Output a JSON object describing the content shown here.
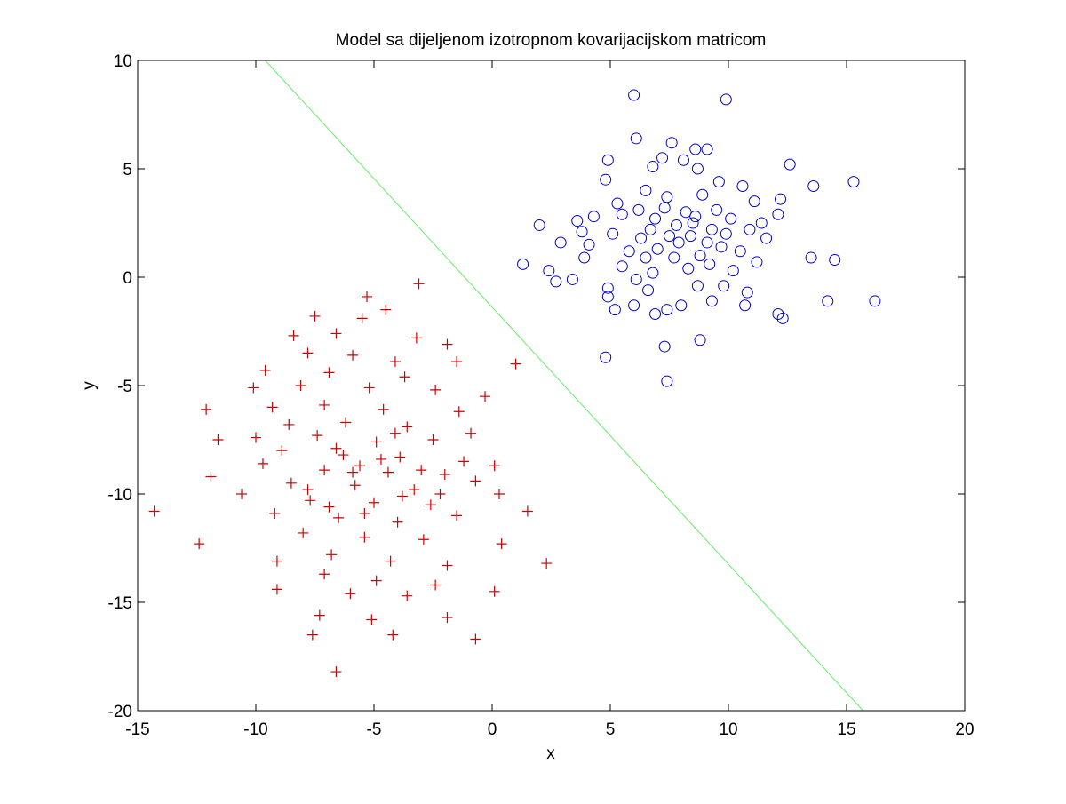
{
  "chart_data": {
    "type": "scatter",
    "title": "Model sa dijeljenom izotropnom kovarijacijskom matricom",
    "xlabel": "x",
    "ylabel": "y",
    "xlim": [
      -15,
      20
    ],
    "ylim": [
      -20,
      10
    ],
    "xticks": [
      -15,
      -10,
      -5,
      0,
      5,
      10,
      15,
      20
    ],
    "yticks": [
      -20,
      -15,
      -10,
      -5,
      0,
      5,
      10
    ],
    "grid": false,
    "legend": null,
    "colors": {
      "circles": "#0000cc",
      "pluses": "#cc0000",
      "boundary": "#66ee66"
    },
    "decision_boundary": {
      "points": [
        [
          -9.6,
          10
        ],
        [
          15.7,
          -20
        ]
      ]
    },
    "series": [
      {
        "marker": "circle",
        "color": "#0000cc",
        "cluster_center": [
          8,
          2
        ],
        "points": [
          [
            6,
            8.4
          ],
          [
            9.9,
            8.2
          ],
          [
            6.1,
            6.4
          ],
          [
            7.6,
            6.2
          ],
          [
            8.6,
            5.9
          ],
          [
            9.1,
            5.9
          ],
          [
            7.2,
            5.5
          ],
          [
            4.9,
            5.4
          ],
          [
            6.8,
            5.1
          ],
          [
            8.1,
            5.4
          ],
          [
            8.7,
            5.0
          ],
          [
            12.6,
            5.2
          ],
          [
            4.8,
            4.5
          ],
          [
            15.3,
            4.4
          ],
          [
            13.6,
            4.2
          ],
          [
            9.6,
            4.4
          ],
          [
            10.6,
            4.2
          ],
          [
            11.1,
            3.5
          ],
          [
            6.2,
            3.1
          ],
          [
            7.4,
            3.7
          ],
          [
            8.9,
            3.8
          ],
          [
            3.6,
            2.6
          ],
          [
            5.5,
            2.9
          ],
          [
            6.9,
            2.7
          ],
          [
            7.8,
            2.4
          ],
          [
            8.5,
            2.5
          ],
          [
            9.3,
            2.2
          ],
          [
            10.1,
            2.7
          ],
          [
            11.4,
            2.5
          ],
          [
            12.1,
            2.9
          ],
          [
            2.0,
            2.4
          ],
          [
            2.9,
            1.6
          ],
          [
            4.1,
            1.5
          ],
          [
            5.1,
            2.0
          ],
          [
            6.3,
            1.8
          ],
          [
            7.0,
            1.3
          ],
          [
            7.9,
            1.6
          ],
          [
            8.8,
            1.0
          ],
          [
            9.7,
            1.4
          ],
          [
            10.5,
            1.2
          ],
          [
            11.6,
            1.8
          ],
          [
            1.3,
            0.6
          ],
          [
            2.4,
            0.3
          ],
          [
            3.9,
            0.9
          ],
          [
            5.5,
            0.5
          ],
          [
            6.8,
            0.2
          ],
          [
            8.3,
            0.4
          ],
          [
            9.2,
            0.6
          ],
          [
            10.2,
            0.3
          ],
          [
            11.2,
            0.7
          ],
          [
            13.5,
            0.9
          ],
          [
            14.5,
            0.8
          ],
          [
            2.7,
            -0.2
          ],
          [
            3.4,
            -0.1
          ],
          [
            4.9,
            -0.5
          ],
          [
            6.1,
            -0.1
          ],
          [
            6.6,
            -0.6
          ],
          [
            8.7,
            -0.4
          ],
          [
            9.8,
            -0.4
          ],
          [
            10.8,
            -0.7
          ],
          [
            4.9,
            -0.9
          ],
          [
            5.2,
            -1.5
          ],
          [
            6.0,
            -1.3
          ],
          [
            6.9,
            -1.7
          ],
          [
            7.4,
            -1.5
          ],
          [
            8.0,
            -1.3
          ],
          [
            9.3,
            -1.1
          ],
          [
            10.7,
            -1.3
          ],
          [
            12.1,
            -1.7
          ],
          [
            12.3,
            -1.9
          ],
          [
            14.2,
            -1.1
          ],
          [
            16.2,
            -1.1
          ],
          [
            8.8,
            -2.9
          ],
          [
            7.3,
            -3.2
          ],
          [
            4.8,
            -3.7
          ],
          [
            7.4,
            -4.8
          ],
          [
            6.5,
            4.0
          ],
          [
            7.3,
            3.2
          ],
          [
            8.2,
            3.0
          ],
          [
            9.5,
            3.1
          ],
          [
            6.7,
            2.2
          ],
          [
            7.5,
            1.9
          ],
          [
            8.4,
            1.9
          ],
          [
            9.1,
            1.6
          ],
          [
            5.8,
            1.2
          ],
          [
            6.5,
            0.9
          ],
          [
            7.7,
            0.9
          ],
          [
            8.6,
            2.8
          ],
          [
            9.9,
            2.0
          ],
          [
            5.3,
            3.4
          ],
          [
            10.9,
            2.2
          ],
          [
            4.3,
            2.8
          ],
          [
            12.2,
            3.6
          ],
          [
            3.8,
            2.1
          ]
        ]
      },
      {
        "marker": "plus",
        "color": "#cc0000",
        "cluster_center": [
          -5,
          -9.5
        ],
        "points": [
          [
            -3.1,
            -0.3
          ],
          [
            -5.3,
            -0.9
          ],
          [
            -4.5,
            -1.5
          ],
          [
            -7.5,
            -1.8
          ],
          [
            -5.5,
            -1.9
          ],
          [
            -6.6,
            -2.6
          ],
          [
            -8.4,
            -2.7
          ],
          [
            -3.2,
            -2.8
          ],
          [
            -1.9,
            -3.1
          ],
          [
            -7.8,
            -3.5
          ],
          [
            -5.9,
            -3.6
          ],
          [
            -4.1,
            -3.9
          ],
          [
            -1.5,
            -3.9
          ],
          [
            1.0,
            -4.0
          ],
          [
            -9.6,
            -4.3
          ],
          [
            -6.9,
            -4.4
          ],
          [
            -3.7,
            -4.6
          ],
          [
            -10.1,
            -5.1
          ],
          [
            -8.1,
            -5.0
          ],
          [
            -5.2,
            -5.1
          ],
          [
            -2.4,
            -5.2
          ],
          [
            -0.3,
            -5.5
          ],
          [
            -9.3,
            -6.0
          ],
          [
            -7.1,
            -5.9
          ],
          [
            -4.6,
            -6.1
          ],
          [
            -1.4,
            -6.2
          ],
          [
            -12.1,
            -6.1
          ],
          [
            -8.6,
            -6.8
          ],
          [
            -6.2,
            -6.7
          ],
          [
            -3.6,
            -6.9
          ],
          [
            -0.9,
            -7.2
          ],
          [
            -10.0,
            -7.4
          ],
          [
            -7.4,
            -7.3
          ],
          [
            -4.9,
            -7.6
          ],
          [
            -2.5,
            -7.5
          ],
          [
            -11.6,
            -7.5
          ],
          [
            -8.9,
            -8.0
          ],
          [
            -6.3,
            -8.2
          ],
          [
            -3.9,
            -8.3
          ],
          [
            -1.2,
            -8.5
          ],
          [
            -9.7,
            -8.6
          ],
          [
            -7.1,
            -8.9
          ],
          [
            -4.4,
            -9.0
          ],
          [
            -2.0,
            -9.1
          ],
          [
            0.1,
            -8.7
          ],
          [
            -11.9,
            -9.2
          ],
          [
            -8.5,
            -9.5
          ],
          [
            -5.8,
            -9.6
          ],
          [
            -3.3,
            -9.8
          ],
          [
            -0.7,
            -9.4
          ],
          [
            -10.6,
            -10.0
          ],
          [
            -7.7,
            -10.3
          ],
          [
            -5.0,
            -10.4
          ],
          [
            -2.6,
            -10.5
          ],
          [
            0.3,
            -10.0
          ],
          [
            -14.3,
            -10.8
          ],
          [
            -9.2,
            -10.9
          ],
          [
            -6.5,
            -11.1
          ],
          [
            -4.0,
            -11.3
          ],
          [
            -1.5,
            -11.0
          ],
          [
            1.5,
            -10.8
          ],
          [
            -8.0,
            -11.8
          ],
          [
            -5.4,
            -12.0
          ],
          [
            -2.9,
            -12.1
          ],
          [
            0.4,
            -12.3
          ],
          [
            -12.4,
            -12.3
          ],
          [
            -9.1,
            -13.1
          ],
          [
            -6.8,
            -12.8
          ],
          [
            -4.3,
            -13.1
          ],
          [
            -1.9,
            -13.3
          ],
          [
            2.3,
            -13.2
          ],
          [
            -7.1,
            -13.7
          ],
          [
            -4.9,
            -14.0
          ],
          [
            -2.4,
            -14.2
          ],
          [
            -9.1,
            -14.4
          ],
          [
            -6.0,
            -14.6
          ],
          [
            -3.6,
            -14.7
          ],
          [
            0.1,
            -14.5
          ],
          [
            -7.3,
            -15.6
          ],
          [
            -5.1,
            -15.8
          ],
          [
            -1.9,
            -15.7
          ],
          [
            -7.6,
            -16.5
          ],
          [
            -4.2,
            -16.5
          ],
          [
            -0.7,
            -16.7
          ],
          [
            -6.6,
            -18.2
          ],
          [
            -5.9,
            -9.0
          ],
          [
            -4.7,
            -8.4
          ],
          [
            -6.6,
            -7.9
          ],
          [
            -5.4,
            -10.9
          ],
          [
            -3.8,
            -10.1
          ],
          [
            -6.9,
            -10.6
          ],
          [
            -4.1,
            -7.2
          ],
          [
            -5.6,
            -8.7
          ],
          [
            -3.0,
            -8.9
          ],
          [
            -7.8,
            -9.8
          ],
          [
            -2.2,
            -10.0
          ]
        ]
      }
    ]
  }
}
